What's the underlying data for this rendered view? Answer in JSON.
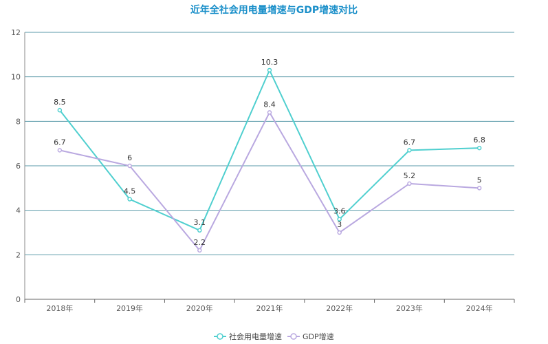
{
  "chart_data": {
    "type": "line",
    "title": "近年全社会用电量增速与GDP增速对比",
    "categories": [
      "2018年",
      "2019年",
      "2020年",
      "2021年",
      "2022年",
      "2023年",
      "2024年"
    ],
    "series": [
      {
        "name": "社会用电量增速",
        "values": [
          8.5,
          4.5,
          3.1,
          10.3,
          3.6,
          6.7,
          6.8
        ],
        "color": "#4fcfcf"
      },
      {
        "name": "GDP增速",
        "values": [
          6.7,
          6,
          2.2,
          8.4,
          3,
          5.2,
          5
        ],
        "color": "#b9a8e0"
      }
    ],
    "ylim": [
      0,
      12
    ],
    "yticks": [
      0,
      2,
      4,
      6,
      8,
      10,
      12
    ],
    "xlabel": "",
    "ylabel": "",
    "grid": true,
    "grid_color": "#5a9aa8",
    "legend_position": "bottom-center"
  }
}
